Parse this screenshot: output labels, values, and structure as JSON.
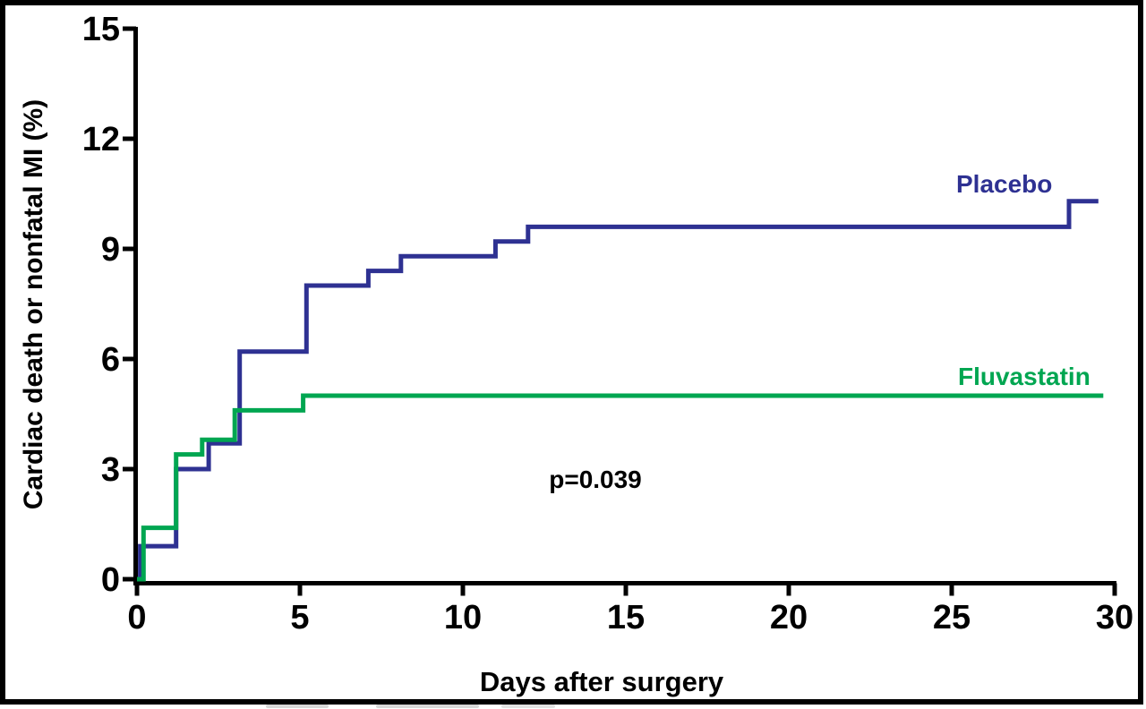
{
  "figure": {
    "kind": "Kaplan-Meier cumulative incidence plot",
    "background": "#ffffff",
    "frame_color": "#000000"
  },
  "chart_data": {
    "type": "line",
    "subtype": "step",
    "title": "",
    "xlabel": "Days after surgery",
    "ylabel": "Cardiac death or nonfatal MI (%)",
    "xlim": [
      0,
      30
    ],
    "ylim": [
      0,
      15
    ],
    "xticks": [
      0,
      5,
      10,
      15,
      20,
      25,
      30
    ],
    "yticks": [
      0,
      3,
      6,
      9,
      12,
      15
    ],
    "grid": false,
    "legend_position": "labels-at-line-end",
    "annotation": "p=0.039",
    "axis_color": "#000000",
    "series": [
      {
        "name": "Placebo",
        "color": "#2E3192",
        "end_day": 29.5,
        "points": [
          [
            0,
            0
          ],
          [
            0.1,
            0.9
          ],
          [
            1.2,
            3.0
          ],
          [
            2.2,
            3.7
          ],
          [
            3.15,
            6.2
          ],
          [
            5.2,
            8.0
          ],
          [
            7.1,
            8.4
          ],
          [
            8.1,
            8.8
          ],
          [
            11.0,
            9.2
          ],
          [
            12.0,
            9.6
          ],
          [
            28.6,
            10.3
          ]
        ]
      },
      {
        "name": "Fluvastatin",
        "color": "#00A651",
        "end_day": 29.65,
        "points": [
          [
            0,
            0
          ],
          [
            0.2,
            1.4
          ],
          [
            1.2,
            3.4
          ],
          [
            2.0,
            3.8
          ],
          [
            3.0,
            4.6
          ],
          [
            5.1,
            5.0
          ]
        ]
      }
    ]
  }
}
